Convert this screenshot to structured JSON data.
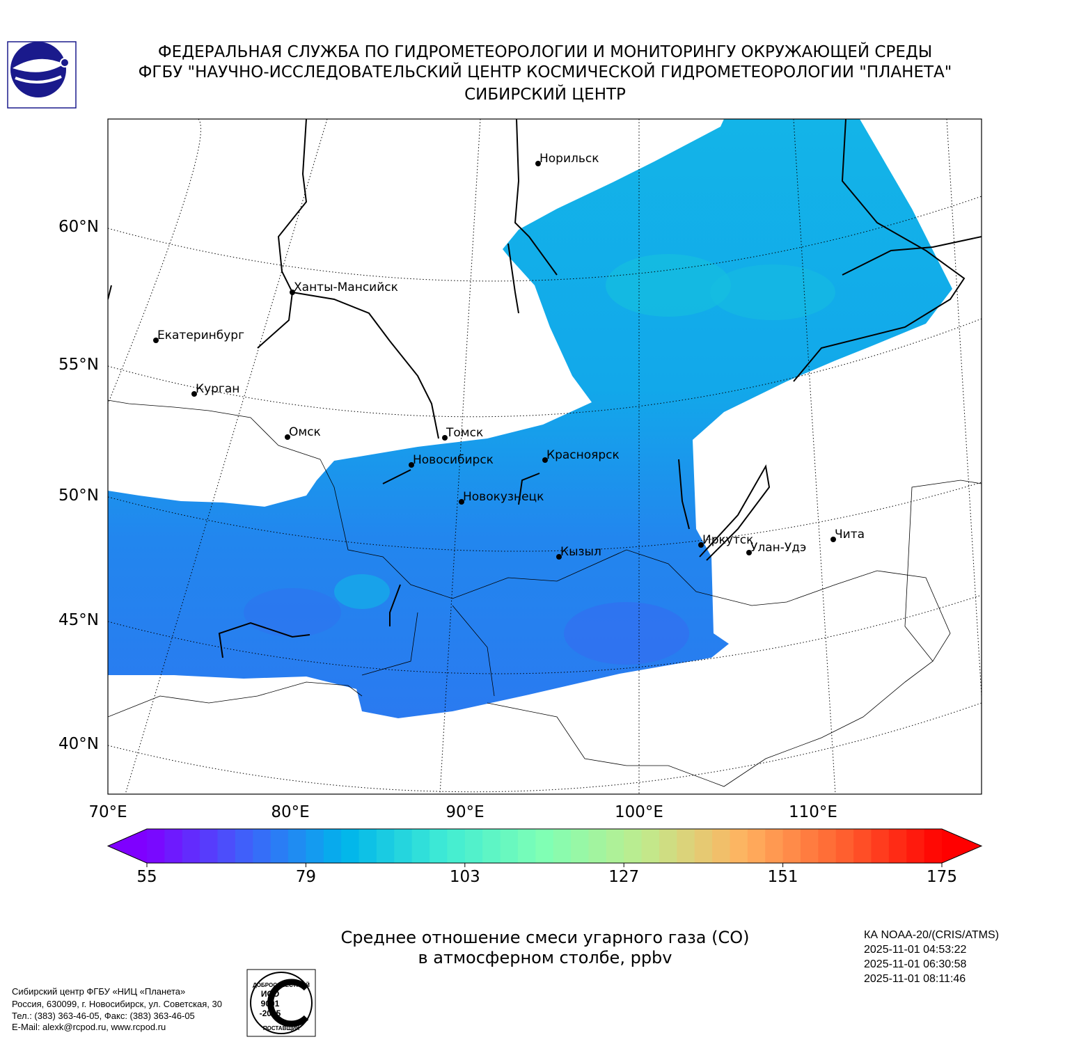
{
  "header": {
    "lines": [
      "ФЕДЕРАЛЬНАЯ СЛУЖБА ПО ГИДРОМЕТЕОРОЛОГИИ И МОНИТОРИНГУ ОКРУЖАЮЩЕЙ СРЕДЫ",
      "ФГБУ \"НАУЧНО-ИССЛЕДОВАТЕЛЬСКИЙ ЦЕНТР КОСМИЧЕСКОЙ ГИДРОМЕТЕОРОЛОГИИ \"ПЛАНЕТА\"",
      "СИБИРСКИЙ ЦЕНТР"
    ]
  },
  "map": {
    "lat_labels": [
      {
        "value": 60,
        "label": "60°N"
      },
      {
        "value": 55,
        "label": "55°N"
      },
      {
        "value": 50,
        "label": "50°N"
      },
      {
        "value": 45,
        "label": "45°N"
      },
      {
        "value": 40,
        "label": "40°N"
      }
    ],
    "lon_labels": [
      {
        "value": 70,
        "label": "70°E"
      },
      {
        "value": 80,
        "label": "80°E"
      },
      {
        "value": 90,
        "label": "90°E"
      },
      {
        "value": 100,
        "label": "100°E"
      },
      {
        "value": 110,
        "label": "110°E"
      }
    ],
    "cities": [
      "Норильск",
      "Ханты-Мансийск",
      "Екатеринбург",
      "Курган",
      "Омск",
      "Томск",
      "Новосибирск",
      "Красноярск",
      "Новокузнецк",
      "Кызыл",
      "Иркутск",
      "Улан-Удэ",
      "Чита"
    ]
  },
  "colorbar": {
    "lim": [
      55,
      175
    ],
    "ticks": [
      55,
      79,
      103,
      127,
      151,
      175
    ],
    "colors": [
      "#7f00ff",
      "#3f61fa",
      "#00b5eb",
      "#40ecd4",
      "#80ffb4",
      "#c0eb8d",
      "#ffb360",
      "#ff6130",
      "#ff0000"
    ]
  },
  "caption": {
    "lines": [
      "Среднее отношение смеси угарного газа (CO)",
      "в атмосферном столбе, ppbv"
    ]
  },
  "satellite": {
    "lines": [
      "КА NOAA-20/(CRIS/ATMS)",
      "2025-11-01 04:53:22",
      "2025-11-01 06:30:58",
      "2025-11-01 08:11:46"
    ]
  },
  "footer": {
    "lines": [
      "Сибирский центр ФГБУ «НИЦ «Планета»",
      "Россия, 630099, г. Новосибирск, ул. Советская, 30",
      "Тел.: (383) 363-46-05, Факс: (383) 363-46-05",
      "E-Mail: alexk@rcpod.ru, www.rcpod.ru"
    ]
  },
  "iso_stamp": {
    "top": "ДОБРОСОВЕСТНЫЙ",
    "lines": [
      "ИСО",
      "9001",
      "-2015"
    ],
    "bottom": "ПОСТАВЩИК"
  }
}
